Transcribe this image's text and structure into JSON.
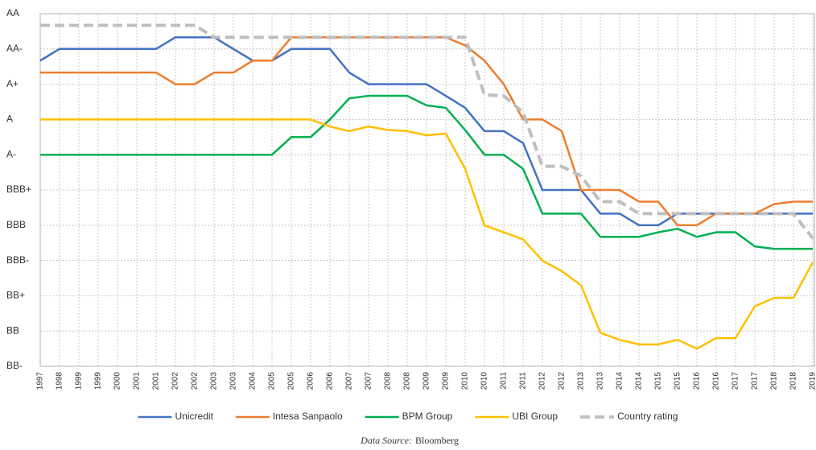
{
  "chart_data": {
    "type": "line",
    "categories": [
      "1997",
      "1998",
      "1999",
      "1999",
      "2000",
      "2001",
      "2001",
      "2002",
      "2002",
      "2003",
      "2003",
      "2004",
      "2005",
      "2005",
      "2006",
      "2006",
      "2007",
      "2007",
      "2008",
      "2008",
      "2009",
      "2009",
      "2010",
      "2010",
      "2011",
      "2011",
      "2012",
      "2012",
      "2013",
      "2013",
      "2014",
      "2014",
      "2015",
      "2015",
      "2016",
      "2016",
      "2017",
      "2017",
      "2018",
      "2018",
      "2019"
    ],
    "ylim": [
      0,
      10
    ],
    "yticks": [
      {
        "value": 0,
        "label": "BB-"
      },
      {
        "value": 1,
        "label": "BB"
      },
      {
        "value": 2,
        "label": "BB+"
      },
      {
        "value": 3,
        "label": "BBB-"
      },
      {
        "value": 4,
        "label": "BBB"
      },
      {
        "value": 5,
        "label": "BBB+"
      },
      {
        "value": 6,
        "label": "A-"
      },
      {
        "value": 7,
        "label": "A"
      },
      {
        "value": 8,
        "label": "A+"
      },
      {
        "value": 9,
        "label": "AA-"
      },
      {
        "value": 10,
        "label": "AA"
      }
    ],
    "grid": true,
    "legend": "bottom",
    "series": [
      {
        "name": "Unicredit",
        "color": "#4472c4",
        "values": [
          8.67,
          9,
          9,
          9,
          9,
          9,
          9,
          9.33,
          9.33,
          9.33,
          9,
          8.67,
          8.67,
          9,
          9,
          9,
          8.33,
          8,
          8,
          8,
          8,
          7.67,
          7.33,
          6.67,
          6.67,
          6.33,
          5,
          5,
          5,
          4.33,
          4.33,
          4,
          4,
          4.33,
          4.33,
          4.33,
          4.33,
          4.33,
          4.33,
          4.33,
          4.33
        ]
      },
      {
        "name": "Intesa Sanpaolo",
        "color": "#ed7d31",
        "values": [
          8.33,
          8.33,
          8.33,
          8.33,
          8.33,
          8.33,
          8.33,
          8,
          8,
          8.33,
          8.33,
          8.67,
          8.67,
          9.33,
          9.33,
          9.33,
          9.33,
          9.33,
          9.33,
          9.33,
          9.33,
          9.33,
          9.1,
          8.67,
          8,
          7,
          7,
          6.67,
          5,
          5,
          5,
          4.67,
          4.67,
          4,
          4,
          4.33,
          4.33,
          4.33,
          4.6,
          4.67,
          4.67
        ]
      },
      {
        "name": "BPM Group",
        "color": "#00b050",
        "values": [
          6,
          6,
          6,
          6,
          6,
          6,
          6,
          6,
          6,
          6,
          6,
          6,
          6,
          6.5,
          6.5,
          7,
          7.6,
          7.67,
          7.67,
          7.67,
          7.4,
          7.33,
          6.7,
          6,
          6,
          5.6,
          4.33,
          4.33,
          4.33,
          3.67,
          3.67,
          3.67,
          3.8,
          3.9,
          3.67,
          3.8,
          3.8,
          3.4,
          3.33,
          3.33,
          3.33
        ]
      },
      {
        "name": "UBI Group",
        "color": "#ffc000",
        "values": [
          7,
          7,
          7,
          7,
          7,
          7,
          7,
          7,
          7,
          7,
          7,
          7,
          7,
          7,
          7,
          6.8,
          6.67,
          6.8,
          6.7,
          6.67,
          6.55,
          6.6,
          5.6,
          4,
          3.8,
          3.6,
          3,
          2.7,
          2.3,
          0.95,
          0.75,
          0.62,
          0.62,
          0.75,
          0.5,
          0.8,
          0.8,
          1.7,
          1.94,
          1.94,
          2.95
        ]
      },
      {
        "name": "Country rating",
        "color": "#bfbfbf",
        "dashed": true,
        "values": [
          9.67,
          9.67,
          9.67,
          9.67,
          9.67,
          9.67,
          9.67,
          9.67,
          9.67,
          9.33,
          9.33,
          9.33,
          9.33,
          9.33,
          9.33,
          9.33,
          9.33,
          9.33,
          9.33,
          9.33,
          9.33,
          9.33,
          9.33,
          7.7,
          7.67,
          7.2,
          5.67,
          5.67,
          5.4,
          4.67,
          4.67,
          4.33,
          4.33,
          4.33,
          4.33,
          4.33,
          4.33,
          4.33,
          4.33,
          4.33,
          3.63
        ]
      }
    ],
    "source_label": "Data Source:",
    "source": "Bloomberg"
  }
}
